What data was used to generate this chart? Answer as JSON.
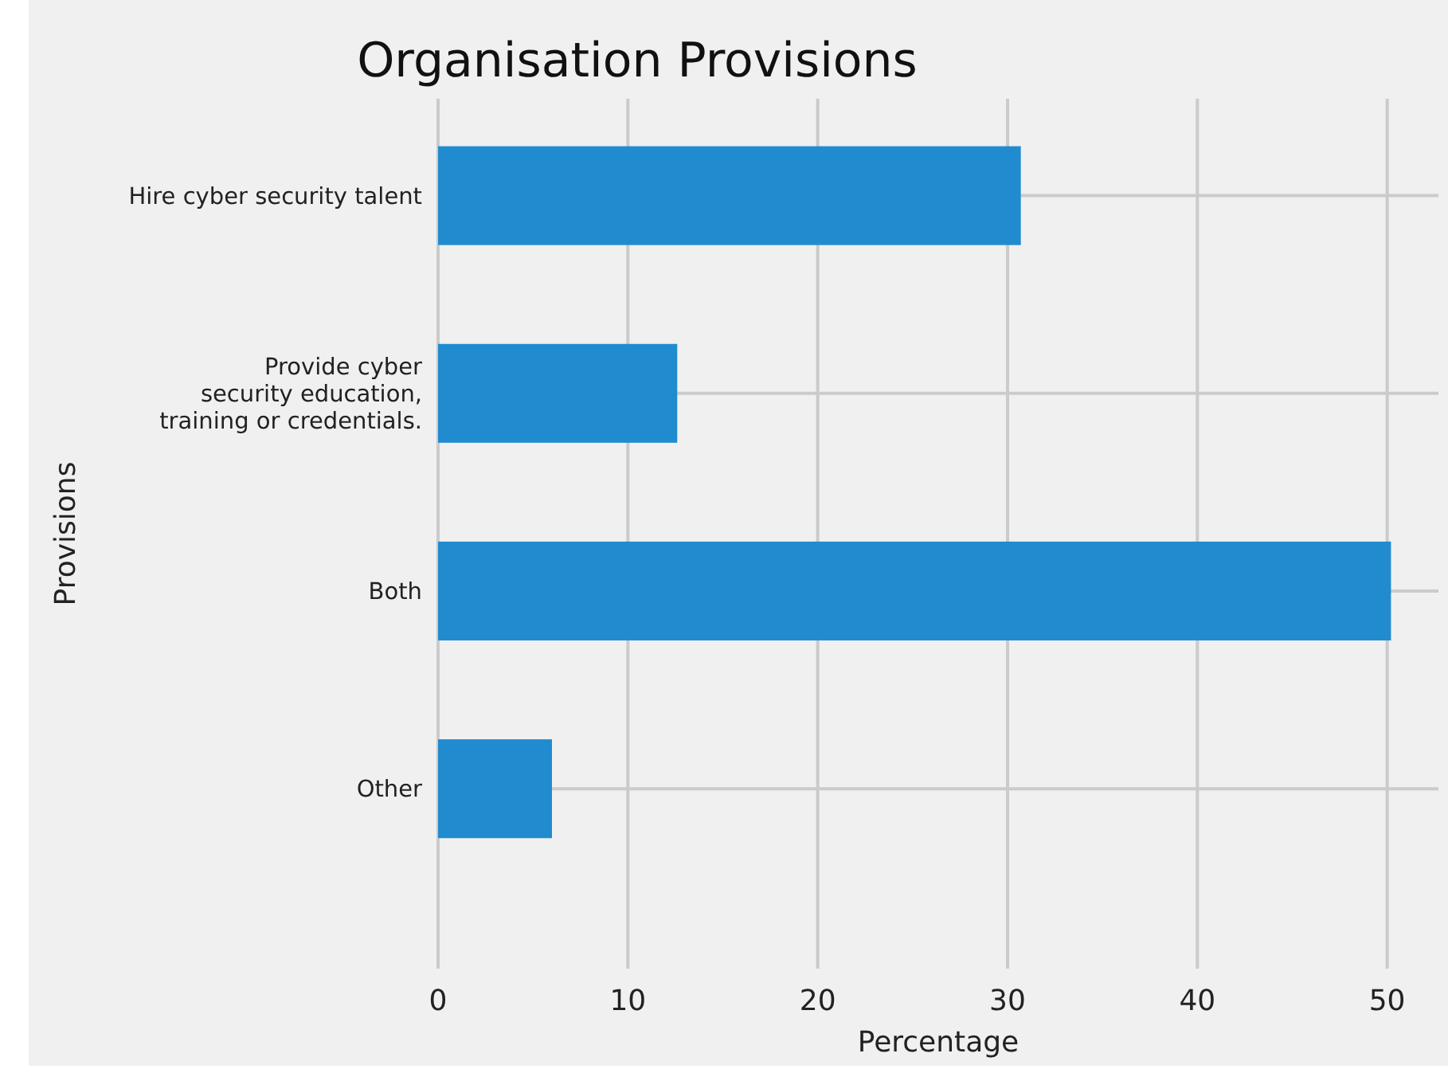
{
  "chart_data": {
    "type": "bar",
    "orientation": "horizontal",
    "title": "Organisation Provisions",
    "xlabel": "Percentage",
    "ylabel": "Provisions",
    "categories": [
      "Hire cyber security talent",
      "Provide cyber\nsecurity education,\ntraining or credentials.",
      "Both",
      "Other"
    ],
    "values": [
      30.7,
      12.6,
      50.2,
      6.0
    ],
    "color": "#208ccf",
    "xlim": [
      0,
      52.7
    ],
    "xticks": [
      0,
      10,
      20,
      30,
      40,
      50
    ],
    "grid": true
  }
}
